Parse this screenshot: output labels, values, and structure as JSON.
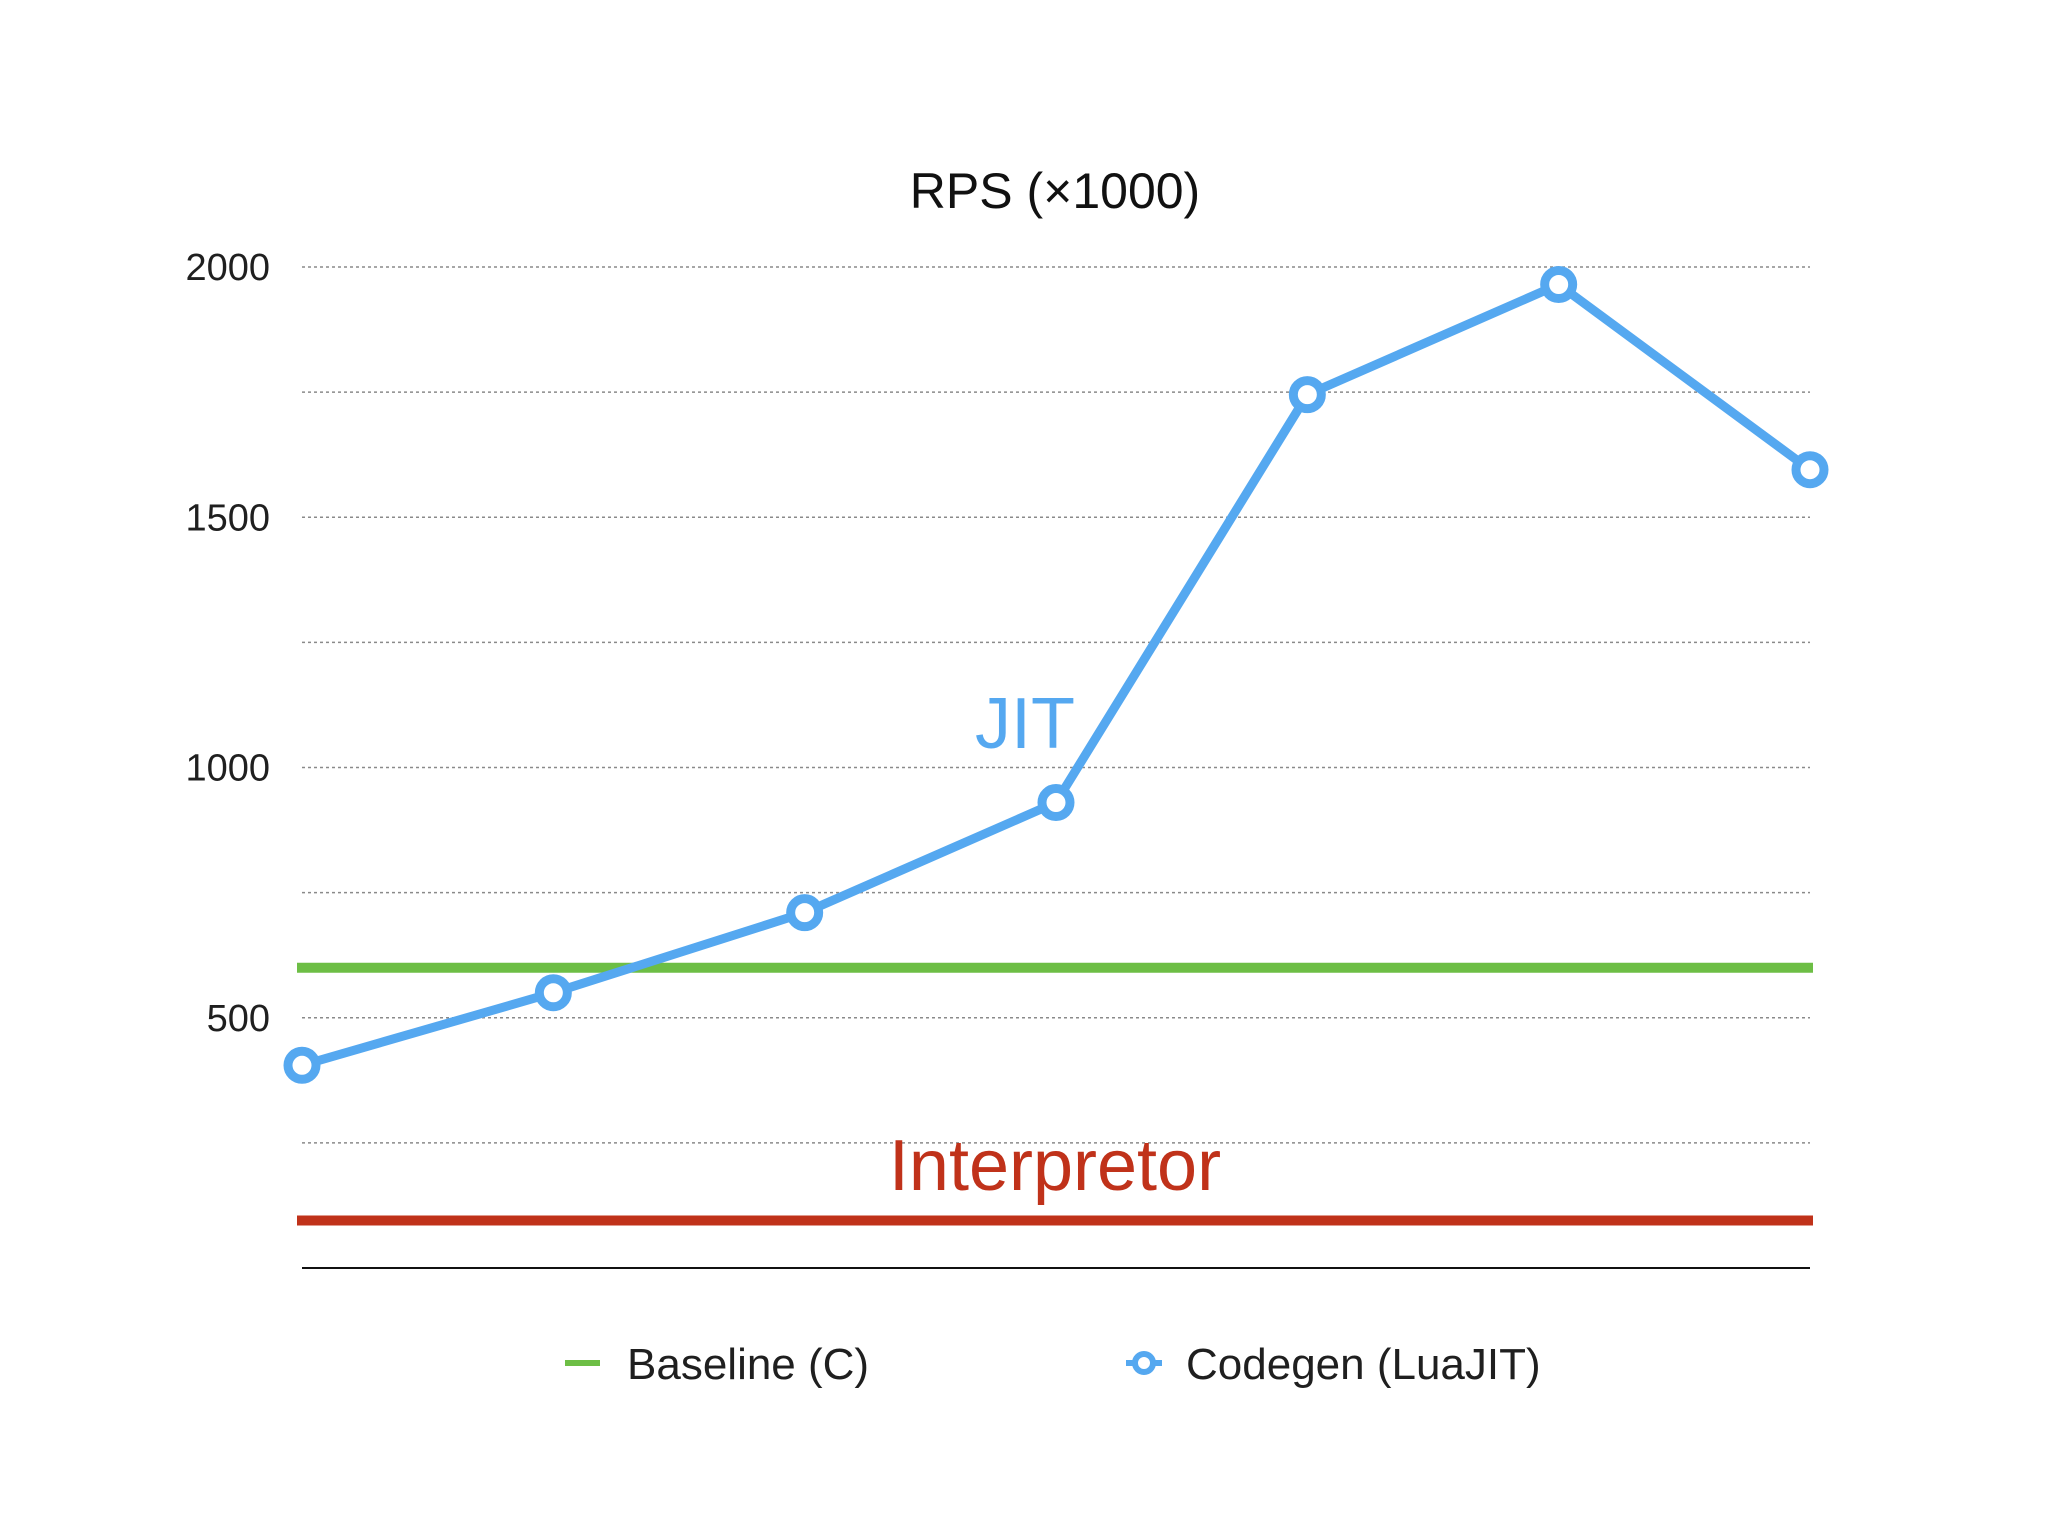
{
  "chart_data": {
    "type": "line",
    "title": "RPS (×1000)",
    "xlabel": "",
    "ylabel": "",
    "ylim": [
      0,
      2000
    ],
    "yticks": [
      500,
      1000,
      1500,
      2000
    ],
    "grid": true,
    "legend_position": "bottom",
    "series": [
      {
        "name": "Codegen (LuaJIT)",
        "color": "#55a8f0",
        "values": [
          405,
          550,
          710,
          930,
          1745,
          1965,
          1595
        ]
      }
    ],
    "reference_lines": [
      {
        "name": "Baseline (C)",
        "value": 600,
        "color": "#6dbe45",
        "in_legend": true
      },
      {
        "name": "Interpretor",
        "value": 95,
        "color": "#c0321a",
        "in_legend": false
      }
    ],
    "annotations": [
      {
        "text": "JIT",
        "color": "#55a8f0"
      },
      {
        "text": "Interpretor",
        "color": "#c0321a"
      }
    ],
    "legend": [
      {
        "label": "Baseline (C)",
        "marker": "dash",
        "color": "#6dbe45"
      },
      {
        "label": "Codegen (LuaJIT)",
        "marker": "circle",
        "color": "#55a8f0"
      }
    ]
  }
}
